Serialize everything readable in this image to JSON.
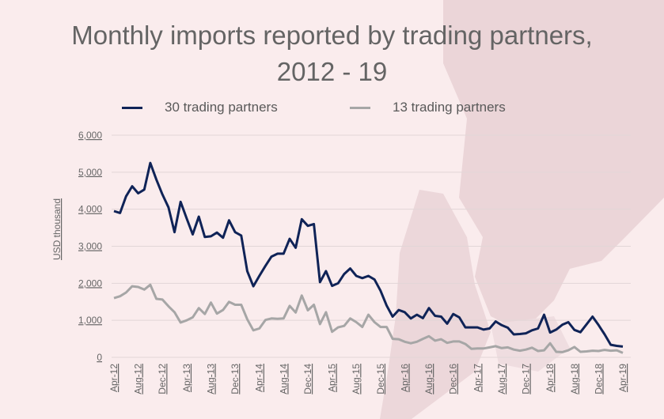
{
  "chart_data": {
    "type": "line",
    "title": "Monthly imports reported by trading partners, 2012 - 19",
    "title_lines": [
      "Monthly imports reported by trading partners,",
      "2012 - 19"
    ],
    "xlabel": "",
    "ylabel": "USD thousand",
    "ylim": [
      0,
      6000
    ],
    "yticks": [
      "0",
      "1,000",
      "2,000",
      "3,000",
      "4,000",
      "5,000",
      "6,000"
    ],
    "ytick_values": [
      0,
      1000,
      2000,
      3000,
      4000,
      5000,
      6000
    ],
    "x_start": "Apr-12",
    "x_end": "Apr-19",
    "xtick_labels": [
      "Apr-12",
      "Aug-12",
      "Dec-12",
      "Apr-13",
      "Aug-13",
      "Dec-13",
      "Apr-14",
      "Aug-14",
      "Dec-14",
      "Apr-15",
      "Aug-15",
      "Dec-15",
      "Apr-16",
      "Aug-16",
      "Dec-16",
      "Apr-17",
      "Aug-17",
      "Dec-17",
      "Apr-18",
      "Aug-18",
      "Dec-18",
      "Apr-19"
    ],
    "grid": true,
    "legend_placement": "top",
    "series": [
      {
        "name": "30 trading partners",
        "color": "#0f2357",
        "values": [
          3950,
          3900,
          4350,
          4620,
          4430,
          4530,
          5250,
          4800,
          4400,
          4050,
          3380,
          4200,
          3750,
          3320,
          3800,
          3250,
          3270,
          3370,
          3230,
          3700,
          3380,
          3290,
          2330,
          1920,
          2200,
          2470,
          2720,
          2800,
          2800,
          3200,
          2960,
          3730,
          3550,
          3600,
          2030,
          2330,
          1930,
          2000,
          2250,
          2400,
          2200,
          2140,
          2200,
          2100,
          1800,
          1400,
          1100,
          1280,
          1220,
          1050,
          1150,
          1060,
          1330,
          1120,
          1100,
          910,
          1170,
          1080,
          810,
          810,
          810,
          750,
          780,
          970,
          870,
          800,
          620,
          630,
          650,
          730,
          780,
          1150,
          670,
          750,
          880,
          950,
          740,
          680,
          890,
          1100,
          870,
          620,
          340,
          310,
          290
        ]
      },
      {
        "name": "13 trading partners",
        "color": "#a6a6a6",
        "values": [
          1600,
          1650,
          1750,
          1920,
          1900,
          1830,
          1960,
          1580,
          1560,
          1380,
          1220,
          940,
          1000,
          1080,
          1330,
          1170,
          1480,
          1180,
          1280,
          1500,
          1420,
          1420,
          1030,
          730,
          780,
          1010,
          1050,
          1040,
          1050,
          1390,
          1210,
          1670,
          1270,
          1420,
          900,
          1220,
          690,
          810,
          850,
          1050,
          950,
          820,
          1150,
          950,
          820,
          820,
          500,
          490,
          420,
          380,
          420,
          500,
          570,
          450,
          490,
          390,
          430,
          430,
          360,
          230,
          240,
          240,
          270,
          300,
          250,
          270,
          210,
          180,
          210,
          260,
          170,
          190,
          380,
          150,
          140,
          190,
          280,
          150,
          160,
          180,
          170,
          200,
          180,
          190,
          120
        ]
      }
    ]
  }
}
